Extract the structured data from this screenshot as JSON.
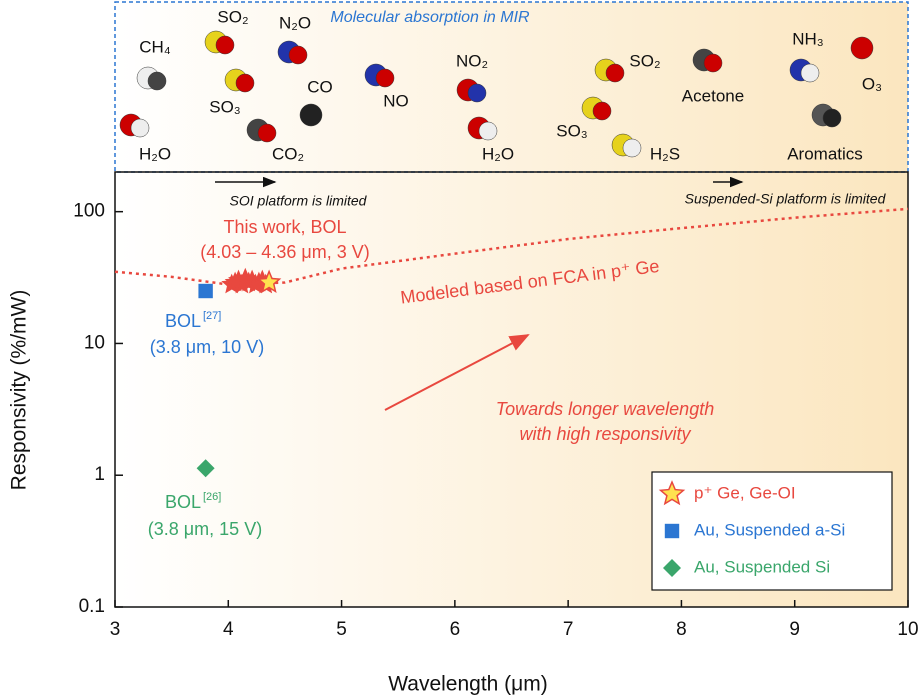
{
  "chart_data": {
    "type": "scatter",
    "panel_title": "Molecular absorption in MIR",
    "molecules": [
      "CH₄",
      "SO₂",
      "N₂O",
      "SO₃",
      "CO",
      "CO₂",
      "H₂O",
      "NO",
      "NO₂",
      "H₂O",
      "SO₂",
      "SO₃",
      "H₂S",
      "Acetone",
      "NH₃",
      "O₃",
      "Aromatics"
    ],
    "x_label": "Wavelength (μm)",
    "y_label": "Responsivity (%/mW)",
    "xlim": [
      3,
      10
    ],
    "xticks": [
      3,
      4,
      5,
      6,
      7,
      8,
      9,
      10
    ],
    "ylim": [
      0.1,
      200
    ],
    "yticks": [
      0.1,
      1,
      10,
      100
    ],
    "log_y": true,
    "legend": "lower right",
    "series": [
      {
        "name": "p⁺ Ge, Ge-OI",
        "color": "#e8483f",
        "marker": "star",
        "marker_fill": "#ffe14f",
        "x": [
          4.03,
          4.06,
          4.09,
          4.12,
          4.15,
          4.18,
          4.21,
          4.24,
          4.27,
          4.3,
          4.33,
          4.36
        ],
        "values": [
          28,
          29,
          30,
          28,
          31,
          29,
          30,
          28,
          29,
          30,
          28,
          29
        ]
      },
      {
        "name": "Au, Suspended a-Si",
        "color": "#2b76d2",
        "marker": "square",
        "x": [
          3.8
        ],
        "values": [
          25
        ]
      },
      {
        "name": "Au, Suspended Si",
        "color": "#3aa66b",
        "marker": "diamond",
        "x": [
          3.8
        ],
        "values": [
          1.13
        ]
      }
    ],
    "model": {
      "color": "#e8483f",
      "x": [
        3,
        3.5,
        4,
        4.5,
        5,
        6,
        7,
        8,
        9,
        10
      ],
      "values": [
        35,
        32,
        28,
        29,
        37,
        48,
        62,
        75,
        90,
        105
      ]
    },
    "annotations": [
      "This work, BOL",
      "(4.03 – 4.36 μm, 3 V)",
      "Modeled based on FCA in p⁺ Ge",
      "BOL",
      "[27]",
      "(3.8 μm, 10 V)",
      "BOL",
      "[26]",
      "(3.8 μm, 15 V)",
      "Towards longer wavelength",
      "with high responsivity",
      "SOI platform is limited",
      "Suspended-Si platform is limited"
    ]
  }
}
